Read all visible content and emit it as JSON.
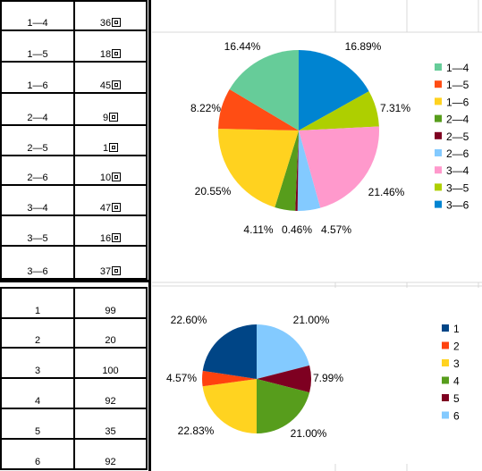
{
  "table_top": {
    "rows": [
      {
        "label": "1—4",
        "value": "36"
      },
      {
        "label": "1—5",
        "value": "18"
      },
      {
        "label": "1—6",
        "value": "45"
      },
      {
        "label": "2—4",
        "value": "9"
      },
      {
        "label": "2—5",
        "value": "1"
      },
      {
        "label": "2—6",
        "value": "10"
      },
      {
        "label": "3—4",
        "value": "47"
      },
      {
        "label": "3—5",
        "value": "16"
      },
      {
        "label": "3—6",
        "value": "37"
      }
    ]
  },
  "table_bottom": {
    "rows": [
      {
        "label": "1",
        "value": "99"
      },
      {
        "label": "2",
        "value": "20"
      },
      {
        "label": "3",
        "value": "100"
      },
      {
        "label": "4",
        "value": "92"
      },
      {
        "label": "5",
        "value": "35"
      },
      {
        "label": "6",
        "value": "92"
      }
    ]
  },
  "chart_data": [
    {
      "type": "pie",
      "categories": [
        "1—4",
        "1—5",
        "1—6",
        "2—4",
        "2—5",
        "2—6",
        "3—4",
        "3—5",
        "3—6"
      ],
      "values": [
        36,
        18,
        45,
        9,
        1,
        10,
        47,
        16,
        37
      ],
      "data_labels": [
        "16.44%",
        "8.22%",
        "20.55%",
        "4.11%",
        "0.46%",
        "4.57%",
        "21.46%",
        "7.31%",
        "16.89%"
      ],
      "colors": [
        "#66cc99",
        "#ff4d14",
        "#ffd21f",
        "#579d1c",
        "#7e0021",
        "#83caff",
        "#ff99cc",
        "#aecf00",
        "#0084d1"
      ],
      "legend": "right",
      "start": "top",
      "direction": "counterclockwise"
    },
    {
      "type": "pie",
      "categories": [
        "1",
        "2",
        "3",
        "4",
        "5",
        "6"
      ],
      "values": [
        99,
        20,
        100,
        92,
        35,
        92
      ],
      "data_labels": [
        "22.60%",
        "4.57%",
        "22.83%",
        "21.00%",
        "7.99%",
        "21.00%"
      ],
      "colors": [
        "#004586",
        "#ff420e",
        "#ffd320",
        "#579d1c",
        "#7e0021",
        "#83caff"
      ],
      "legend": "right",
      "start": "top",
      "direction": "counterclockwise"
    }
  ]
}
